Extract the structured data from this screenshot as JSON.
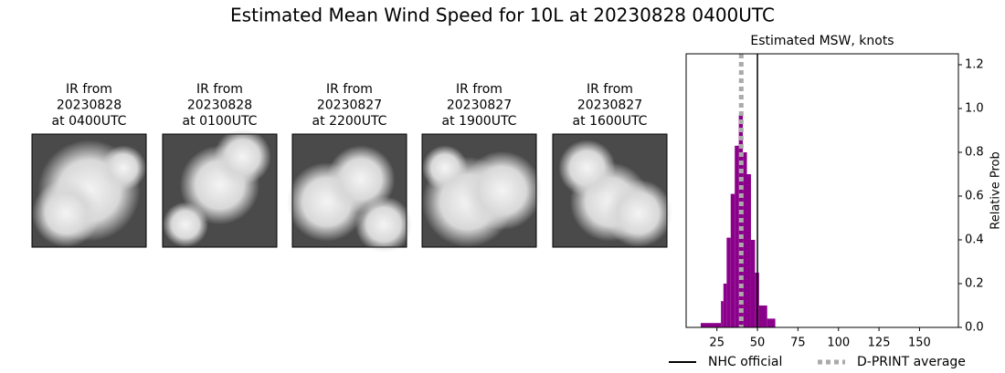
{
  "title": "Estimated Mean Wind Speed for 10L at 20230828 0400UTC",
  "panels": [
    {
      "lines": [
        "IR from",
        "20230828",
        "at 0400UTC"
      ]
    },
    {
      "lines": [
        "IR from",
        "20230828",
        "at 0100UTC"
      ]
    },
    {
      "lines": [
        "IR from",
        "20230827",
        "at 2200UTC"
      ]
    },
    {
      "lines": [
        "IR from",
        "20230827",
        "at 1900UTC"
      ]
    },
    {
      "lines": [
        "IR from",
        "20230827",
        "at 1600UTC"
      ]
    }
  ],
  "chart_data": {
    "type": "histogram",
    "title": "Estimated MSW, knots",
    "y_label": "Relative Prob",
    "bins": [
      15,
      27.5,
      29,
      31,
      33.5,
      36,
      38.5,
      41,
      43.5,
      46,
      48.5,
      51,
      56,
      61
    ],
    "values": [
      0.02,
      0.12,
      0.2,
      0.41,
      0.61,
      0.83,
      0.97,
      0.8,
      0.7,
      0.4,
      0.25,
      0.1,
      0.04
    ],
    "color": "#8b008b",
    "xlim": [
      6,
      174
    ],
    "ylim": [
      0,
      1.25
    ],
    "xticks": [
      25,
      50,
      75,
      100,
      125,
      150
    ],
    "yticks": [
      {
        "value": 0,
        "label": "0.0"
      },
      {
        "value": 0.2,
        "label": "0.2"
      },
      {
        "value": 0.4,
        "label": "0.4"
      },
      {
        "value": 0.6,
        "label": "0.6"
      },
      {
        "value": 0.8,
        "label": "0.8"
      },
      {
        "value": 1,
        "label": "1.0"
      },
      {
        "value": 1.2,
        "label": "1.2"
      }
    ],
    "lines": [
      {
        "name": "NHC official",
        "value": 50,
        "color": "#000000",
        "style": "solid"
      },
      {
        "name": "D-PRINT average",
        "value": 40,
        "color": "#aaaaaa",
        "style": "dotted"
      }
    ]
  }
}
